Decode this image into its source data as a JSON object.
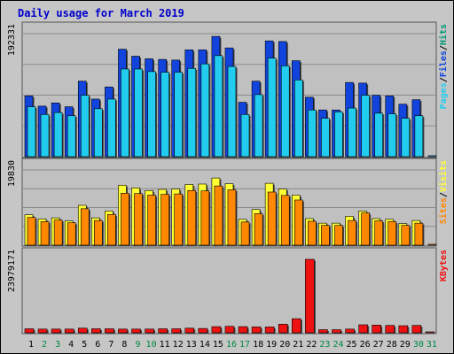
{
  "colors": {
    "frame_bg": "#c6c6c6",
    "plot_bg": "#c0c0c0",
    "title": "#0000cc",
    "pages": "#1144dd",
    "files": "#22ccee",
    "hits": "#009977",
    "visits": "#ffff33",
    "sites": "#ff8800",
    "kbytes": "#ee1111",
    "label_text": "#000000",
    "weekend_day": "#008844"
  },
  "chart_data": {
    "type": "bar",
    "title": "Daily usage for March 2019",
    "categories": [
      "1",
      "2",
      "3",
      "4",
      "5",
      "6",
      "7",
      "8",
      "9",
      "10",
      "11",
      "12",
      "13",
      "14",
      "15",
      "16",
      "17",
      "18",
      "19",
      "20",
      "21",
      "22",
      "23",
      "24",
      "25",
      "26",
      "27",
      "28",
      "29",
      "30",
      "31"
    ],
    "weekend_days": [
      "2",
      "3",
      "9",
      "10",
      "16",
      "17",
      "23",
      "24",
      "30",
      "31"
    ],
    "panels": [
      {
        "id": "hits",
        "ymax_label": "192331",
        "ymax": 192331,
        "legend": [
          {
            "text": "Pages",
            "color": "#22ccee"
          },
          {
            "text": "/",
            "color": "#000000"
          },
          {
            "text": "Files",
            "color": "#1144dd"
          },
          {
            "text": "/",
            "color": "#000000"
          },
          {
            "text": "Hits",
            "color": "#009977"
          }
        ],
        "series": [
          {
            "name": "Hits",
            "color": "#1144dd",
            "values": [
              95000,
              79000,
              84000,
              78000,
              118000,
              90000,
              109000,
              168000,
              157000,
              153000,
              152000,
              151000,
              167000,
              167000,
              188000,
              170000,
              85000,
              118000,
              181000,
              180000,
              150000,
              93000,
              73000,
              73000,
              116000,
              115000,
              96000,
              95000,
              82000,
              89000,
              0
            ]
          },
          {
            "name": "Files",
            "color": "#22ccee",
            "values": [
              78000,
              66000,
              69000,
              64000,
              96000,
              75000,
              90000,
              137000,
              137000,
              133000,
              132000,
              132000,
              138000,
              145000,
              158000,
              141000,
              66000,
              97000,
              154000,
              142000,
              120000,
              73000,
              60000,
              70000,
              76000,
              96000,
              68000,
              67000,
              60000,
              64000,
              1500
            ]
          }
        ]
      },
      {
        "id": "visits",
        "ymax_label": "19830",
        "ymax": 19830,
        "legend": [
          {
            "text": "Sites",
            "color": "#ff8800"
          },
          {
            "text": "/",
            "color": "#000000"
          },
          {
            "text": "Visits",
            "color": "#ffff33"
          }
        ],
        "series": [
          {
            "name": "Visits",
            "color": "#ffff33",
            "values": [
              8000,
              6900,
              7200,
              6400,
              10500,
              7200,
              9000,
              15800,
              15100,
              14400,
              14700,
              14800,
              16000,
              16100,
              17700,
              16200,
              6800,
              9400,
              16300,
              14800,
              13200,
              7000,
              5800,
              5800,
              7600,
              9000,
              7000,
              6800,
              5700,
              6500,
              0
            ]
          },
          {
            "name": "Sites",
            "color": "#ff8800",
            "values": [
              7300,
              6200,
              6600,
              5900,
              9600,
              6500,
              8100,
              13700,
              13600,
              13200,
              13400,
              13500,
              14400,
              14300,
              15600,
              14600,
              6100,
              8300,
              14000,
              13100,
              11900,
              6300,
              5200,
              5200,
              6500,
              8500,
              6400,
              6200,
              5200,
              5800,
              200
            ]
          }
        ]
      },
      {
        "id": "kbytes",
        "ymax_label": "23979171",
        "ymax": 23979171,
        "legend": [
          {
            "text": "KBytes",
            "color": "#ee1111"
          }
        ],
        "series": [
          {
            "name": "KBytes",
            "color": "#ee1111",
            "values": [
              1300000,
              1200000,
              1200000,
              1200000,
              1500000,
              1300000,
              1300000,
              1200000,
              1200000,
              1200000,
              1300000,
              1300000,
              1500000,
              1400000,
              2000000,
              2100000,
              2000000,
              1900000,
              1900000,
              2800000,
              4600000,
              23979171,
              1000000,
              1000000,
              1200000,
              2600000,
              2500000,
              2400000,
              2300000,
              2400000,
              80000
            ]
          }
        ]
      }
    ]
  }
}
